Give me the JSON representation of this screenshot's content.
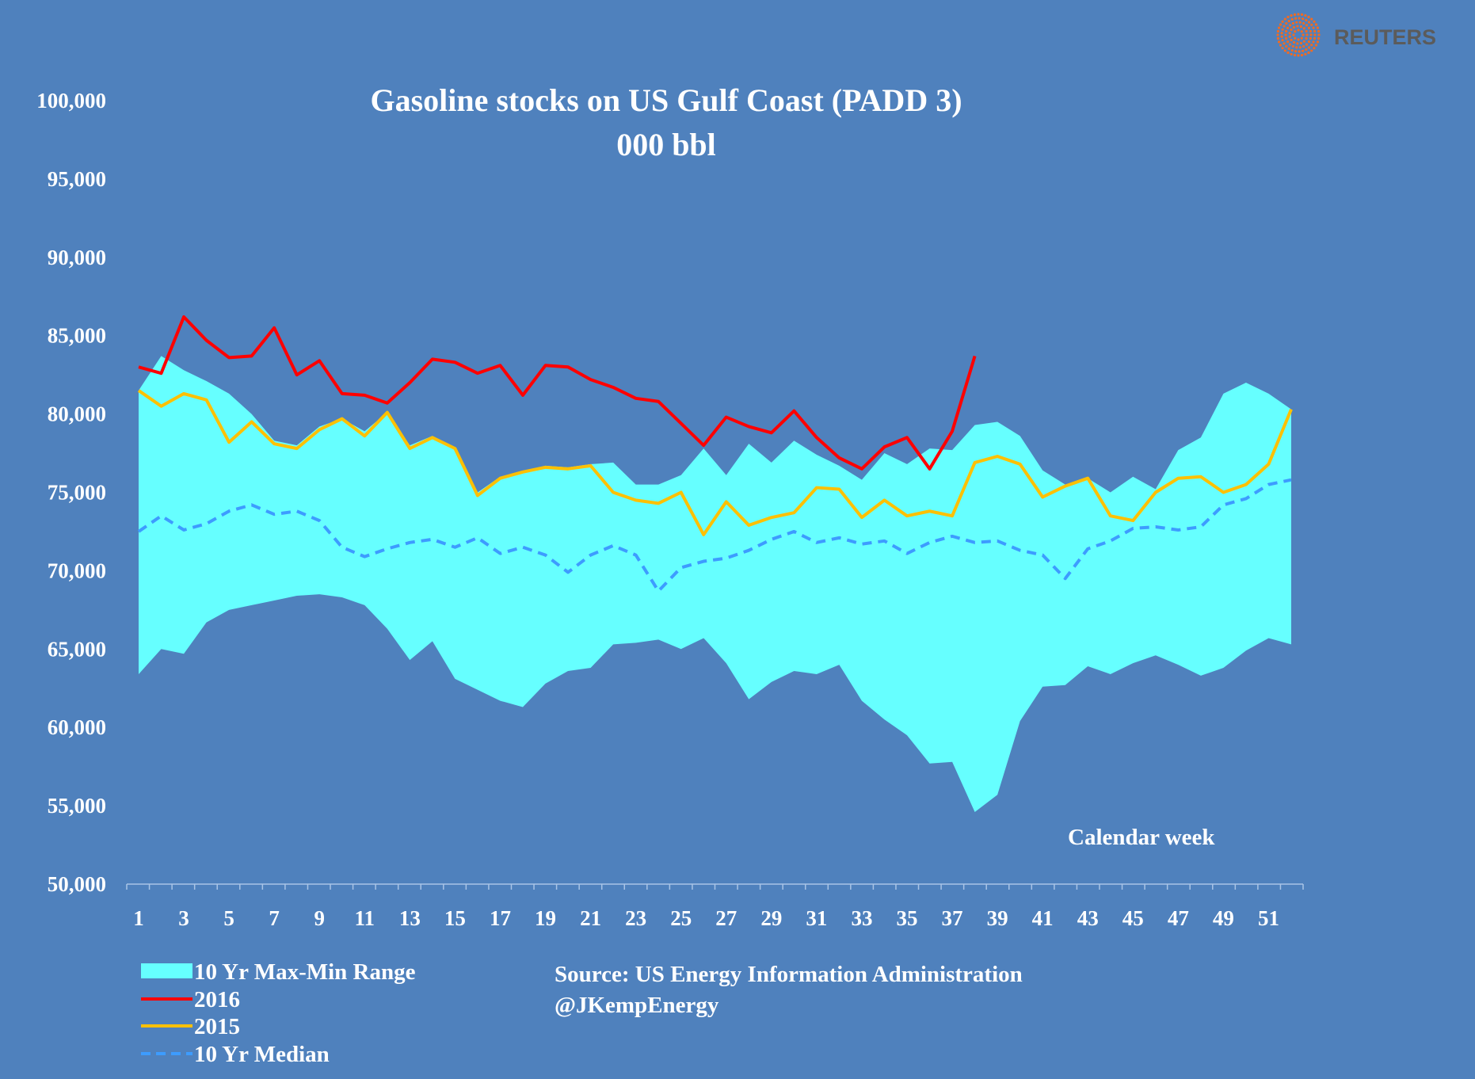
{
  "brand": {
    "name": "REUTERS",
    "logo_color": "#f26b21"
  },
  "chart_data": {
    "type": "area",
    "title": "Gasoline stocks on US Gulf Coast (PADD 3)",
    "subtitle": "000 bbl",
    "xlabel": "Calendar week",
    "ylabel": "",
    "ylim": [
      50000,
      100000
    ],
    "xlim": [
      1,
      52
    ],
    "yticks": [
      "50,000",
      "55,000",
      "60,000",
      "65,000",
      "70,000",
      "75,000",
      "80,000",
      "85,000",
      "90,000",
      "95,000",
      "100,000"
    ],
    "ytick_values": [
      50000,
      55000,
      60000,
      65000,
      70000,
      75000,
      80000,
      85000,
      90000,
      95000,
      100000
    ],
    "xticks": [
      "1",
      "3",
      "5",
      "7",
      "9",
      "11",
      "13",
      "15",
      "17",
      "19",
      "21",
      "23",
      "25",
      "27",
      "29",
      "31",
      "33",
      "35",
      "37",
      "39",
      "41",
      "43",
      "45",
      "47",
      "49",
      "51"
    ],
    "grid": false,
    "legend_position": "bottom-left",
    "source": "Source: US Energy Information Administration",
    "credit": "@JKempEnergy",
    "colors": {
      "background": "#4f81bd",
      "range": "#66ffff",
      "2016": "#ff0000",
      "2015": "#ffc000",
      "median": "#3d9cff"
    },
    "range": {
      "name": "10 Yr Max-Min Range",
      "max": [
        81500,
        83700,
        82800,
        82100,
        81300,
        80000,
        78300,
        78000,
        79200,
        79700,
        78900,
        80100,
        78000,
        78600,
        77800,
        75000,
        76000,
        76300,
        76700,
        76600,
        76800,
        76900,
        75500,
        75500,
        76100,
        77800,
        76100,
        78100,
        76900,
        78300,
        77400,
        76700,
        75800,
        77500,
        76800,
        77800,
        77700,
        79300,
        79500,
        78600,
        76400,
        75500,
        75900,
        75000,
        76000,
        75200,
        77700,
        78500,
        81300,
        82000,
        81300,
        80300
      ],
      "min": [
        63400,
        65000,
        64700,
        66700,
        67500,
        67800,
        68100,
        68400,
        68500,
        68300,
        67800,
        66300,
        64300,
        65500,
        63100,
        62400,
        61700,
        61300,
        62800,
        63600,
        63800,
        65300,
        65400,
        65600,
        65000,
        65700,
        64100,
        61800,
        62900,
        63600,
        63400,
        64000,
        61700,
        60500,
        59500,
        57700,
        57800,
        54600,
        55700,
        60400,
        62600,
        62700,
        63900,
        63400,
        64100,
        64600,
        64000,
        63300,
        63800,
        64900,
        65700,
        65300
      ]
    },
    "series": [
      {
        "name": "2016",
        "values": [
          83000,
          82600,
          86200,
          84700,
          83600,
          83700,
          85500,
          82500,
          83400,
          81300,
          81200,
          80700,
          82000,
          83500,
          83300,
          82600,
          83100,
          81200,
          83100,
          83000,
          82200,
          81700,
          81000,
          80800,
          79400,
          78000,
          79800,
          79200,
          78800,
          80200,
          78500,
          77200,
          76500,
          77900,
          78500,
          76500,
          78900,
          83700
        ]
      },
      {
        "name": "2015",
        "values": [
          81500,
          80500,
          81300,
          80900,
          78200,
          79500,
          78100,
          77800,
          79000,
          79700,
          78600,
          80100,
          77800,
          78500,
          77800,
          74800,
          75900,
          76300,
          76600,
          76500,
          76700,
          75000,
          74500,
          74300,
          75000,
          72300,
          74400,
          72900,
          73400,
          73700,
          75300,
          75200,
          73400,
          74500,
          73500,
          73800,
          73500,
          76900,
          77300,
          76800,
          74700,
          75400,
          75900,
          73500,
          73200,
          75000,
          75900,
          76000,
          75000,
          75500,
          76800,
          80300
        ]
      },
      {
        "name": "10 Yr Median",
        "values": [
          72500,
          73500,
          72600,
          73000,
          73800,
          74200,
          73600,
          73800,
          73200,
          71500,
          70900,
          71400,
          71800,
          72000,
          71500,
          72100,
          71100,
          71500,
          71000,
          69900,
          71000,
          71600,
          71000,
          68700,
          70200,
          70600,
          70800,
          71300,
          72000,
          72500,
          71800,
          72100,
          71700,
          71900,
          71100,
          71800,
          72200,
          71800,
          71900,
          71300,
          71000,
          69500,
          71400,
          71900,
          72700,
          72800,
          72600,
          72800,
          74200,
          74600,
          75500,
          75800
        ]
      }
    ]
  }
}
